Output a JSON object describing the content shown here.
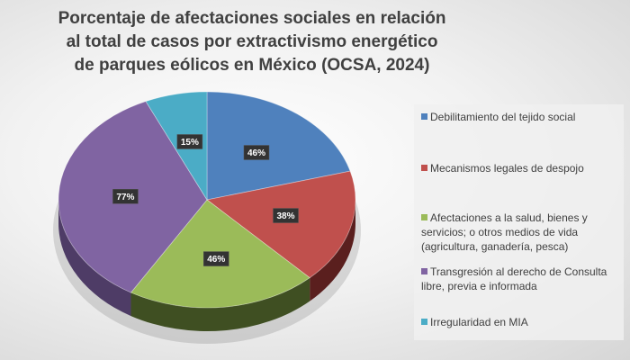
{
  "chart_data": {
    "type": "pie",
    "title": "Porcentaje de afectaciones sociales en relación al total de casos por extractivismo energético de parques eólicos en México (OCSA, 2024)",
    "categories": [
      "Debilitamiento del tejido social",
      "Mecanismos legales de despojo",
      "Afectaciones a la salud, bienes y servicios; o otros medios de vida (agricultura, ganadería, pesca)",
      "Transgresión al derecho de Consulta libre, previa e informada",
      "Irregularidad en MIA"
    ],
    "values": [
      46,
      38,
      46,
      77,
      15
    ],
    "labels": [
      "46%",
      "38%",
      "46%",
      "77%",
      "15%"
    ],
    "colors": [
      "#4f81bd",
      "#c0504d",
      "#9bbb59",
      "#8064a2",
      "#4bacc6"
    ],
    "side_colors": [
      "#2c4a70",
      "#5a1f1e",
      "#3f4f22",
      "#4e3c66",
      "#2a6c7e"
    ],
    "legend_position": "right"
  }
}
